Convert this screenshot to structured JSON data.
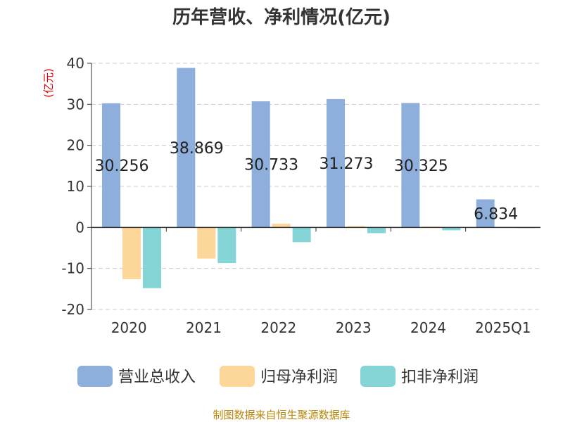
{
  "chart_data": {
    "type": "bar",
    "title": "历年营收、净利情况(亿元)",
    "ylabel": "(亿元)",
    "xlabel": "",
    "categories": [
      "2020",
      "2021",
      "2022",
      "2023",
      "2024",
      "2025Q1"
    ],
    "series": [
      {
        "name": "营业总收入",
        "color": "#8eaedb",
        "values": [
          30.256,
          38.869,
          30.733,
          31.273,
          30.325,
          6.834
        ]
      },
      {
        "name": "归母净利润",
        "color": "#fdd699",
        "values": [
          -12.6,
          -7.6,
          0.9,
          0.3,
          0.2,
          0.1
        ]
      },
      {
        "name": "扣非净利润",
        "color": "#86d5d6",
        "values": [
          -14.8,
          -8.7,
          -3.6,
          -1.4,
          -0.7,
          -0.1
        ]
      }
    ],
    "data_labels": [
      "30.256",
      "38.869",
      "30.733",
      "31.273",
      "30.325",
      "6.834"
    ],
    "ylim": [
      -20,
      40
    ],
    "yticks": [
      -20,
      -10,
      0,
      10,
      20,
      30,
      40
    ],
    "grid": true,
    "legend_position": "bottom"
  },
  "footer": {
    "source": "制图数据来自恒生聚源数据库"
  }
}
